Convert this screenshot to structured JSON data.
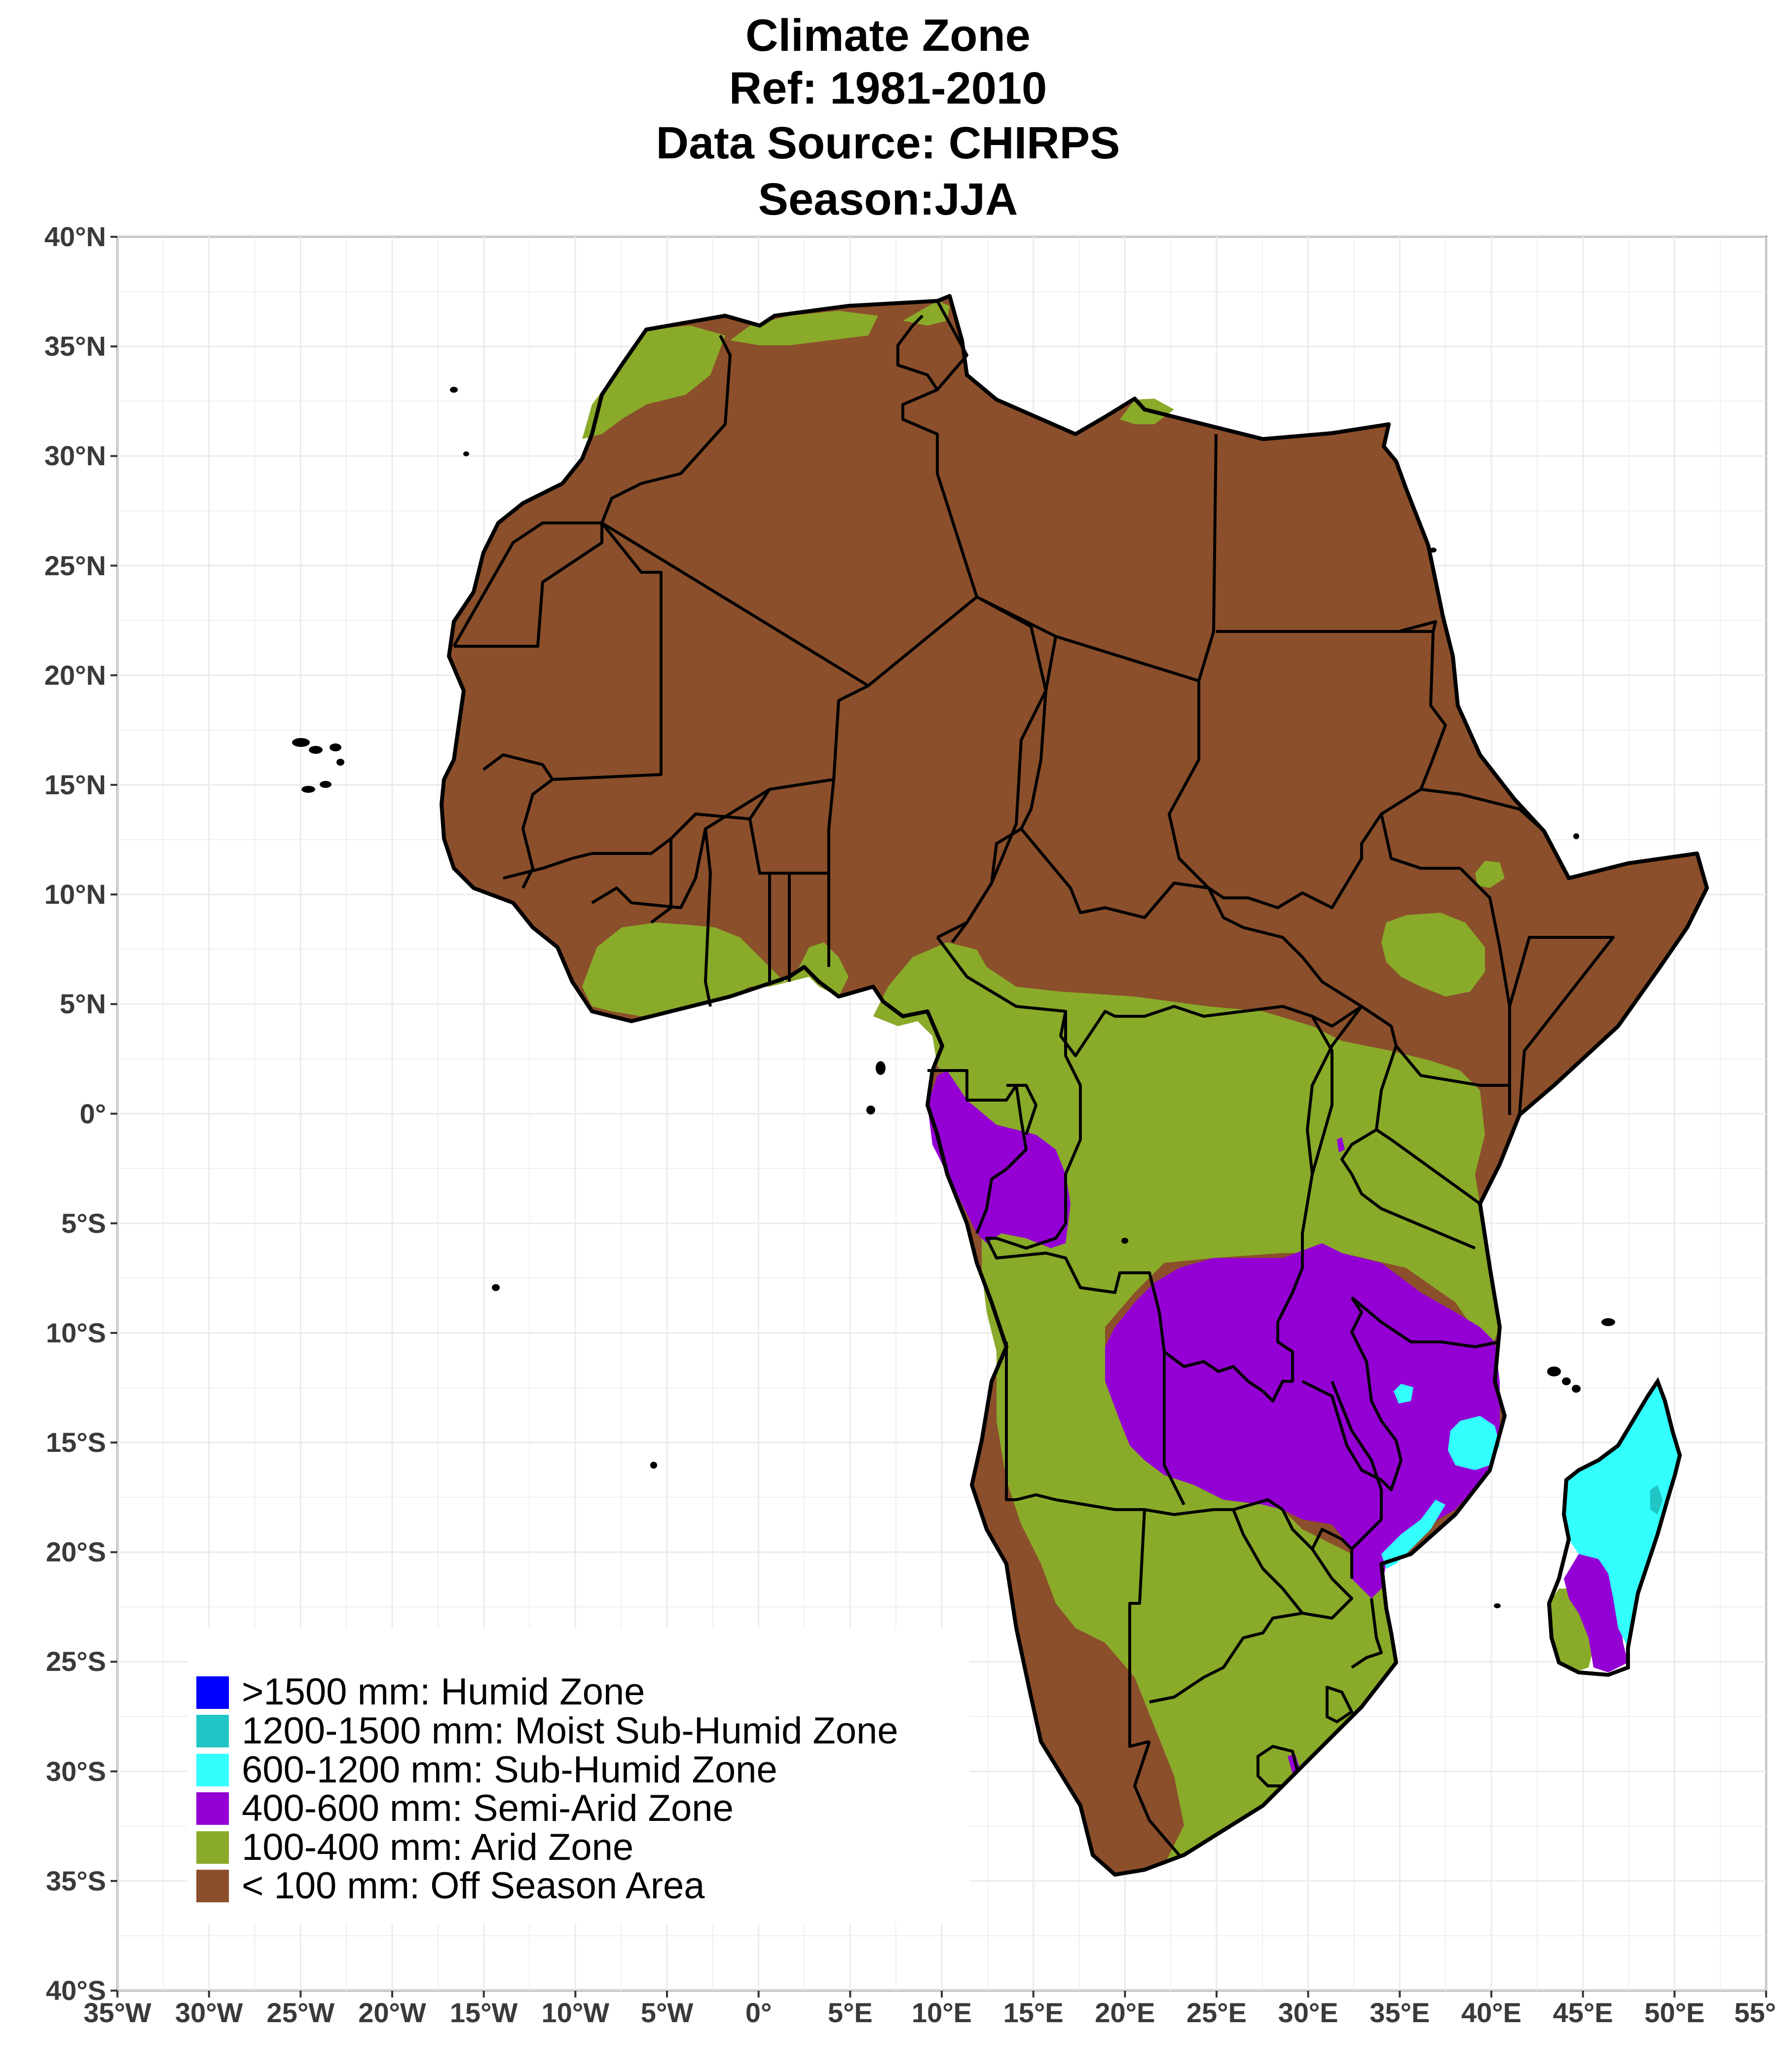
{
  "title": {
    "line1": "Climate Zone",
    "line2": "Ref: 1981-2010",
    "line3": "Data Source: CHIRPS",
    "line4": "Season:JJA"
  },
  "axes": {
    "lat_ticks": [
      "40°N",
      "35°N",
      "30°N",
      "25°N",
      "20°N",
      "15°N",
      "10°N",
      "5°N",
      "0°",
      "5°S",
      "10°S",
      "15°S",
      "20°S",
      "25°S",
      "30°S",
      "35°S",
      "40°S"
    ],
    "lon_ticks": [
      "35°W",
      "30°W",
      "25°W",
      "20°W",
      "15°W",
      "10°W",
      "5°W",
      "0°",
      "5°E",
      "10°E",
      "15°E",
      "20°E",
      "25°E",
      "30°E",
      "35°E",
      "40°E",
      "45°E",
      "50°E",
      "55°"
    ],
    "lat_range": [
      -40,
      40
    ],
    "lon_range": [
      -35,
      55
    ]
  },
  "legend": {
    "items": [
      {
        "label": ">1500 mm:  Humid Zone",
        "color": "#0000ff"
      },
      {
        "label": "1200-1500 mm: Moist Sub-Humid Zone",
        "color": "#20c5c5"
      },
      {
        "label": "600-1200 mm: Sub-Humid Zone",
        "color": "#33ffff"
      },
      {
        "label": "400-600 mm: Semi-Arid Zone",
        "color": "#9400d3"
      },
      {
        "label": "100-400 mm: Arid Zone",
        "color": "#8aaa2a"
      },
      {
        "label": "< 100 mm: Off Season Area",
        "color": "#8b4f2b"
      }
    ]
  },
  "colors": {
    "off_season": "#8b4f2b",
    "arid": "#8aaa2a",
    "semi_arid": "#9400d3",
    "sub_humid": "#33ffff",
    "moist_sub_humid": "#20c5c5",
    "humid": "#0000ff"
  }
}
